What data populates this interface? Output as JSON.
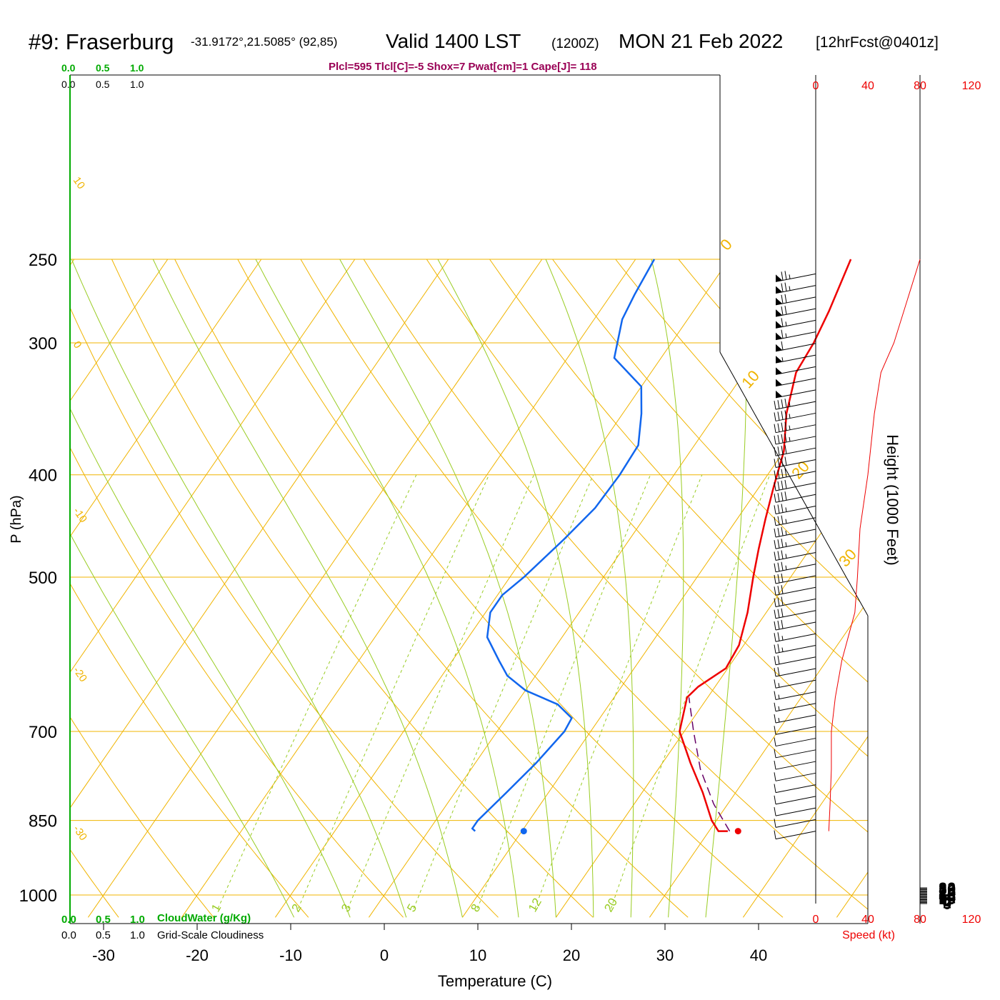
{
  "header": {
    "station": "#9: Fraserburg",
    "coords": "-31.9172°,21.5085° (92,85)",
    "valid": "Valid 1400 LST",
    "zulu": "(1200Z)",
    "date": "MON 21 Feb 2022",
    "forecast": "[12hrFcst@0401z]",
    "indices": "Plcl=595 Tlcl[C]=-5 Shox=7 Pwat[cm]=1 Cape[J]= 118"
  },
  "labels": {
    "cloud_top_values": [
      "0.0",
      "0.5",
      "1.0"
    ],
    "cloud_water": "CloudWater (g/Kg)",
    "cloudiness": "Grid-Scale Cloudiness",
    "speed_top": [
      "0",
      "40",
      "80",
      "120"
    ],
    "speed_bottom": [
      "0",
      "40",
      "80",
      "120"
    ],
    "speed_label": "Speed (kt)",
    "height_label": "Height (1000 Feet)",
    "pressure_label": "P (hPa)",
    "temp_label": "Temperature (C)"
  },
  "colors": {
    "isotherm": "#f0b400",
    "adiabat": "#99cc22",
    "temperature": "#ee0000",
    "dewpoint": "#1166ee",
    "parcel": "#660066",
    "cloud": "#00aa00",
    "indices": "#990055"
  },
  "chart_data": {
    "type": "line",
    "title": "#9: Fraserburg Valid 1400 LST (1200Z) MON 21 Feb 2022 [12hrFcst@0401z]",
    "xlabel": "Temperature (C)",
    "ylabel": "P (hPa)",
    "x_ticks": [
      -30,
      -20,
      -10,
      0,
      10,
      20,
      30,
      40
    ],
    "y_ticks": [
      250,
      300,
      400,
      500,
      700,
      850,
      1000
    ],
    "y_scale": "log",
    "height_ticks_kft": [
      0,
      2,
      4,
      6,
      8,
      10,
      12,
      14,
      16,
      18,
      20,
      22,
      24,
      26,
      28,
      30,
      32
    ],
    "mixing_ratio_labels": [
      "1",
      "2",
      "3",
      "5",
      "8",
      "12",
      "20"
    ],
    "isotherm_labels_left": [
      "10",
      "0",
      "-10",
      "-20",
      "-30"
    ],
    "isotherm_labels_right": [
      "0",
      "10",
      "20",
      "30"
    ],
    "series": [
      {
        "name": "Temperature",
        "points": [
          [
            3.0,
            250
          ],
          [
            4.5,
            280
          ],
          [
            5.2,
            300
          ],
          [
            5.5,
            320
          ],
          [
            7.5,
            350
          ],
          [
            10.0,
            380
          ],
          [
            11.5,
            410
          ],
          [
            13.0,
            440
          ],
          [
            14.5,
            470
          ],
          [
            16.0,
            500
          ],
          [
            18.0,
            540
          ],
          [
            19.5,
            580
          ],
          [
            19.8,
            610
          ],
          [
            18.2,
            635
          ],
          [
            17.8,
            650
          ],
          [
            19.5,
            700
          ],
          [
            23.0,
            750
          ],
          [
            26.5,
            800
          ],
          [
            29.5,
            850
          ],
          [
            31.0,
            870
          ],
          [
            32.0,
            870
          ]
        ]
      },
      {
        "name": "Dewpoint",
        "points": [
          [
            -18.0,
            250
          ],
          [
            -17.5,
            270
          ],
          [
            -17.0,
            285
          ],
          [
            -15.0,
            310
          ],
          [
            -10.0,
            330
          ],
          [
            -8.0,
            350
          ],
          [
            -6.0,
            375
          ],
          [
            -5.8,
            400
          ],
          [
            -6.0,
            430
          ],
          [
            -7.0,
            460
          ],
          [
            -8.5,
            500
          ],
          [
            -9.5,
            520
          ],
          [
            -9.5,
            540
          ],
          [
            -8.0,
            570
          ],
          [
            -5.0,
            600
          ],
          [
            -3.0,
            620
          ],
          [
            0.0,
            640
          ],
          [
            4.5,
            660
          ],
          [
            7.0,
            680
          ],
          [
            7.2,
            700
          ],
          [
            6.5,
            750
          ],
          [
            5.5,
            800
          ],
          [
            4.5,
            850
          ],
          [
            4.5,
            865
          ],
          [
            5.0,
            870
          ]
        ]
      },
      {
        "name": "Parcel",
        "points": [
          [
            32.2,
            870
          ],
          [
            28.5,
            820
          ],
          [
            24.5,
            760
          ],
          [
            21.0,
            700
          ],
          [
            18.0,
            650
          ]
        ]
      }
    ],
    "surface_markers": [
      {
        "name": "Surface dewpoint",
        "x": 10.2,
        "p": 870
      },
      {
        "name": "Surface temperature",
        "x": 33.1,
        "p": 870
      }
    ],
    "wind_speed_kt": [
      [
        10,
        870
      ],
      [
        11,
        820
      ],
      [
        12,
        760
      ],
      [
        12,
        700
      ],
      [
        15,
        650
      ],
      [
        18,
        620
      ],
      [
        20,
        600
      ],
      [
        30,
        540
      ],
      [
        32,
        500
      ],
      [
        34,
        450
      ],
      [
        40,
        400
      ],
      [
        45,
        350
      ],
      [
        50,
        320
      ],
      [
        60,
        300
      ],
      [
        80,
        250
      ]
    ]
  }
}
